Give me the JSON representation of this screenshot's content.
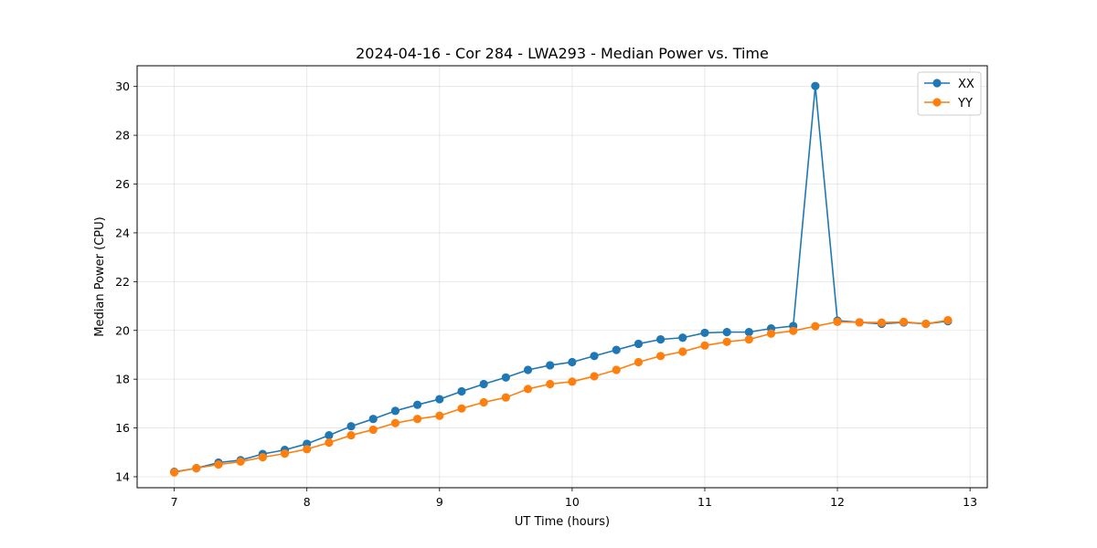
{
  "chart_data": {
    "type": "line",
    "title": "2024-04-16 - Cor 284 - LWA293 - Median Power vs. Time",
    "xlabel": "UT Time (hours)",
    "ylabel": "Median Power (CPU)",
    "xlim": [
      6.72,
      13.13
    ],
    "ylim": [
      13.55,
      30.85
    ],
    "xticks": [
      7,
      8,
      9,
      10,
      11,
      12,
      13
    ],
    "yticks": [
      14,
      16,
      18,
      20,
      22,
      24,
      26,
      28,
      30
    ],
    "grid": true,
    "legend_position": "top-right",
    "x": [
      7.0,
      7.1667,
      7.3333,
      7.5,
      7.6667,
      7.8333,
      8.0,
      8.1667,
      8.3333,
      8.5,
      8.6667,
      8.8333,
      9.0,
      9.1667,
      9.3333,
      9.5,
      9.6667,
      9.8333,
      10.0,
      10.1667,
      10.3333,
      10.5,
      10.6667,
      10.8333,
      11.0,
      11.1667,
      11.3333,
      11.5,
      11.6667,
      11.8333,
      12.0,
      12.1667,
      12.3333,
      12.5,
      12.6667,
      12.8333
    ],
    "series": [
      {
        "name": "XX",
        "color": "#1f77b4",
        "values": [
          14.2,
          14.35,
          14.58,
          14.68,
          14.93,
          15.1,
          15.35,
          15.7,
          16.07,
          16.37,
          16.7,
          16.95,
          17.18,
          17.5,
          17.8,
          18.07,
          18.38,
          18.57,
          18.7,
          18.95,
          19.2,
          19.45,
          19.63,
          19.7,
          19.9,
          19.93,
          19.93,
          20.08,
          20.18,
          30.02,
          20.4,
          20.33,
          20.27,
          20.33,
          20.27,
          20.38
        ]
      },
      {
        "name": "YY",
        "color": "#ff7f0e",
        "values": [
          14.18,
          14.35,
          14.5,
          14.62,
          14.8,
          14.95,
          15.13,
          15.4,
          15.7,
          15.93,
          16.2,
          16.37,
          16.5,
          16.8,
          17.05,
          17.25,
          17.6,
          17.8,
          17.9,
          18.12,
          18.38,
          18.7,
          18.95,
          19.13,
          19.38,
          19.53,
          19.63,
          19.87,
          19.98,
          20.17,
          20.35,
          20.33,
          20.32,
          20.35,
          20.27,
          20.42
        ]
      }
    ]
  }
}
